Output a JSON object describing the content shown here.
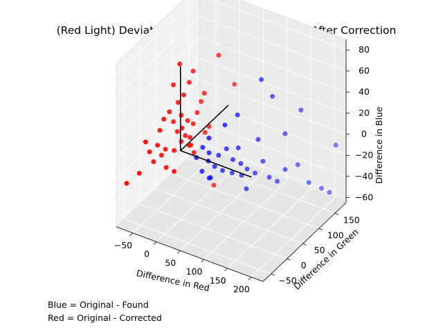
{
  "chart_data": {
    "type": "scatter",
    "projection": "3d",
    "title": "(Red Light) Deviation in RGB Space Before and After Correction",
    "xlabel": "Difference in Red",
    "ylabel": "Difference in Green",
    "zlabel": "Difference in Blue",
    "x_ticks": [
      "−50",
      "0",
      "50",
      "100",
      "150",
      "200"
    ],
    "y_ticks": [
      "−50",
      "0",
      "50",
      "100",
      "150"
    ],
    "z_ticks": [
      "−60",
      "−40",
      "−20",
      "0",
      "20",
      "40",
      "60",
      "80"
    ],
    "xlim": [
      -85,
      225
    ],
    "ylim": [
      -75,
      185
    ],
    "zlim": [
      -65,
      90
    ],
    "grid": true,
    "series": [
      {
        "name": "Original - Found",
        "color": "#0000ff",
        "points": [
          [
            20,
            40,
            -5
          ],
          [
            30,
            45,
            -10
          ],
          [
            10,
            35,
            -15
          ],
          [
            25,
            50,
            -20
          ],
          [
            40,
            60,
            -15
          ],
          [
            50,
            70,
            -10
          ],
          [
            35,
            55,
            -25
          ],
          [
            15,
            45,
            -30
          ],
          [
            45,
            65,
            -30
          ],
          [
            60,
            75,
            -20
          ],
          [
            55,
            80,
            -35
          ],
          [
            70,
            85,
            -25
          ],
          [
            80,
            90,
            -30
          ],
          [
            65,
            95,
            -40
          ],
          [
            30,
            50,
            -35
          ],
          [
            20,
            60,
            -40
          ],
          [
            90,
            100,
            -35
          ],
          [
            100,
            110,
            -25
          ],
          [
            75,
            70,
            -5
          ],
          [
            85,
            80,
            -45
          ],
          [
            110,
            115,
            -40
          ],
          [
            120,
            125,
            -45
          ],
          [
            130,
            135,
            -35
          ],
          [
            150,
            145,
            -30
          ],
          [
            170,
            150,
            -45
          ],
          [
            190,
            160,
            -50
          ],
          [
            200,
            170,
            -55
          ],
          [
            140,
            120,
            5
          ],
          [
            160,
            140,
            25
          ],
          [
            110,
            90,
            60
          ],
          [
            120,
            110,
            40
          ],
          [
            80,
            60,
            30
          ],
          [
            60,
            50,
            20
          ],
          [
            40,
            30,
            10
          ],
          [
            100,
            95,
            0
          ],
          [
            210,
            175,
            -10
          ]
        ]
      },
      {
        "name": "Original - Corrected",
        "color": "#ff0000",
        "points": [
          [
            -5,
            10,
            5
          ],
          [
            0,
            15,
            10
          ],
          [
            5,
            20,
            0
          ],
          [
            -10,
            5,
            15
          ],
          [
            10,
            25,
            20
          ],
          [
            -15,
            0,
            25
          ],
          [
            15,
            30,
            30
          ],
          [
            20,
            35,
            40
          ],
          [
            -20,
            -5,
            35
          ],
          [
            0,
            10,
            50
          ],
          [
            5,
            20,
            60
          ],
          [
            10,
            25,
            70
          ],
          [
            -5,
            5,
            80
          ],
          [
            -25,
            -10,
            0
          ],
          [
            -30,
            -15,
            -5
          ],
          [
            -35,
            -20,
            5
          ],
          [
            -40,
            -25,
            -10
          ],
          [
            -20,
            -15,
            -15
          ],
          [
            -10,
            -5,
            -20
          ],
          [
            25,
            40,
            10
          ],
          [
            30,
            45,
            15
          ],
          [
            15,
            20,
            -5
          ],
          [
            -60,
            -40,
            -20
          ],
          [
            -80,
            -50,
            -30
          ],
          [
            20,
            45,
            45
          ],
          [
            -15,
            0,
            60
          ],
          [
            -5,
            10,
            30
          ],
          [
            5,
            15,
            25
          ],
          [
            0,
            5,
            20
          ],
          [
            -45,
            -30,
            0
          ],
          [
            -50,
            -35,
            10
          ],
          [
            -30,
            -20,
            20
          ],
          [
            -25,
            -15,
            30
          ],
          [
            10,
            15,
            10
          ],
          [
            15,
            10,
            5
          ],
          [
            -10,
            -5,
            0
          ],
          [
            40,
            60,
            80
          ],
          [
            -5,
            0,
            45
          ],
          [
            60,
            80,
            50
          ],
          [
            30,
            60,
            -45
          ]
        ]
      }
    ],
    "origin_axes_color": "#000000"
  },
  "notes": [
    "Blue = Original - Found",
    "Red = Original - Corrected"
  ]
}
